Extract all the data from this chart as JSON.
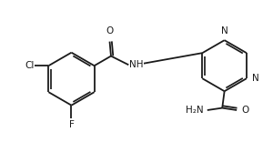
{
  "background": "#ffffff",
  "line_color": "#1a1a1a",
  "line_width": 1.3,
  "font_size": 7.5,
  "figsize": [
    3.0,
    1.56
  ],
  "dpi": 100,
  "xlim": [
    -2.8,
    3.2
  ],
  "ylim": [
    -1.6,
    1.6
  ]
}
